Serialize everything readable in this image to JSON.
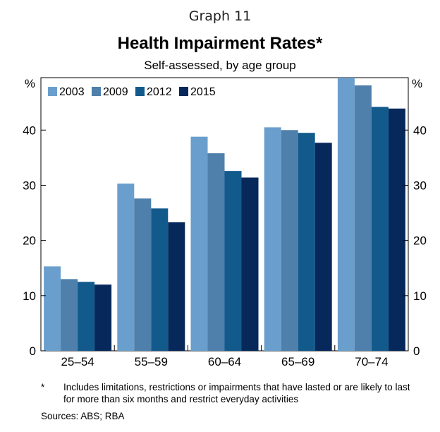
{
  "header": {
    "graph_number": "Graph 11",
    "title": "Health Impairment Rates*",
    "subtitle": "Self-assessed, by age group"
  },
  "footnote": {
    "mark": "*",
    "text": "Includes limitations, restrictions or impairments that have lasted or are likely to last for more than six months and restrict everyday activities"
  },
  "sources": "Sources:   ABS; RBA",
  "chart_data": {
    "type": "bar",
    "title": "Health Impairment Rates*",
    "subtitle": "Self-assessed, by age group",
    "unit_left": "%",
    "unit_right": "%",
    "categories": [
      "25–54",
      "55–59",
      "60–64",
      "65–69",
      "70–74"
    ],
    "series": [
      {
        "name": "2003",
        "color": "#6a9fcd",
        "values": [
          15.3,
          30.3,
          38.8,
          40.5,
          49.5
        ]
      },
      {
        "name": "2009",
        "color": "#4f7fab",
        "values": [
          13.0,
          27.6,
          35.8,
          40.0,
          48.1
        ]
      },
      {
        "name": "2012",
        "color": "#125a8c",
        "values": [
          12.5,
          25.8,
          32.6,
          39.5,
          44.2
        ]
      },
      {
        "name": "2015",
        "color": "#07285a",
        "values": [
          12.0,
          23.3,
          31.4,
          37.7,
          43.9
        ]
      }
    ],
    "ylim": [
      0,
      49.5
    ],
    "yticks": [
      0,
      10,
      20,
      30,
      40
    ],
    "legend_position": "top-left",
    "grid": false
  }
}
